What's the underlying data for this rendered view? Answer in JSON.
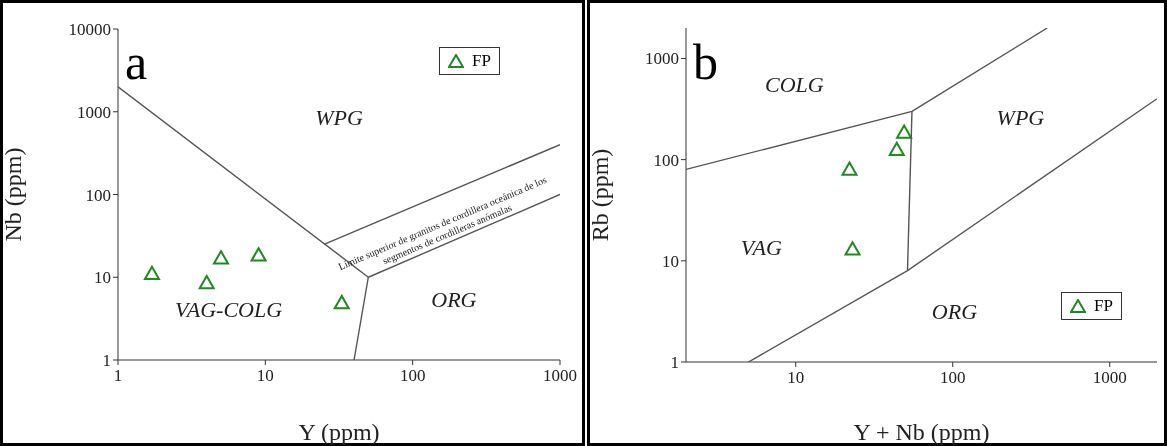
{
  "chart_data": [
    {
      "type": "scatter",
      "xlabel": "Y (ppm)",
      "ylabel": "Nb (ppm)",
      "log": "xy",
      "legend": "top right",
      "xlim": [
        1,
        1000
      ],
      "xticks": [
        1,
        10,
        100,
        1000
      ],
      "ylim": [
        1,
        10000
      ],
      "yticks": [
        1,
        10,
        100,
        1000,
        10000
      ],
      "series": [
        {
          "name": "FP",
          "color": "#1f8a1f",
          "marker": "triangle",
          "x": [
            1.7,
            4,
            5,
            9,
            33
          ],
          "values": [
            11,
            8.5,
            17,
            18.5,
            4.9
          ]
        },
        {
          "type": "line",
          "color": "#555555",
          "line_style": "solid",
          "x": [
            1,
            50,
            1000
          ],
          "values": [
            2000,
            10,
            100
          ]
        },
        {
          "type": "line",
          "color": "#555555",
          "line_style": "solid",
          "x": [
            50,
            40
          ],
          "values": [
            10,
            1
          ]
        },
        {
          "type": "line",
          "color": "#555555",
          "line_style": "solid",
          "x": [
            25,
            1000
          ],
          "values": [
            25,
            400
          ]
        }
      ],
      "annotations": [
        "a",
        "WPG",
        "VAG-COLG",
        "ORG",
        "Límite superior de granitos de cordillera oceánica de los segmentos de cordilleras anómalas"
      ]
    },
    {
      "type": "scatter",
      "xlabel": "Y + Nb (ppm)",
      "ylabel": "Rb (ppm)",
      "log": "xy",
      "legend": "bottom right",
      "xlim": [
        2,
        2000
      ],
      "xticks": [
        10,
        100,
        1000
      ],
      "ylim": [
        1,
        2000
      ],
      "yticks": [
        1,
        10,
        100,
        1000
      ],
      "series": [
        {
          "name": "FP",
          "color": "#1f8a1f",
          "marker": "triangle",
          "x": [
            22,
            23,
            44,
            49
          ],
          "values": [
            80,
            13,
            125,
            185
          ]
        },
        {
          "type": "line",
          "color": "#555555",
          "line_style": "solid",
          "x": [
            2,
            55,
            400
          ],
          "values": [
            80,
            300,
            2000
          ]
        },
        {
          "type": "line",
          "color": "#555555",
          "line_style": "solid",
          "x": [
            55,
            51.5
          ],
          "values": [
            300,
            8
          ]
        },
        {
          "type": "line",
          "color": "#555555",
          "line_style": "solid",
          "x": [
            5,
            51.5,
            2000
          ],
          "values": [
            1,
            8,
            400
          ]
        }
      ],
      "annotations": [
        "b",
        "COLG",
        "VAG",
        "WPG",
        "ORG"
      ]
    }
  ]
}
